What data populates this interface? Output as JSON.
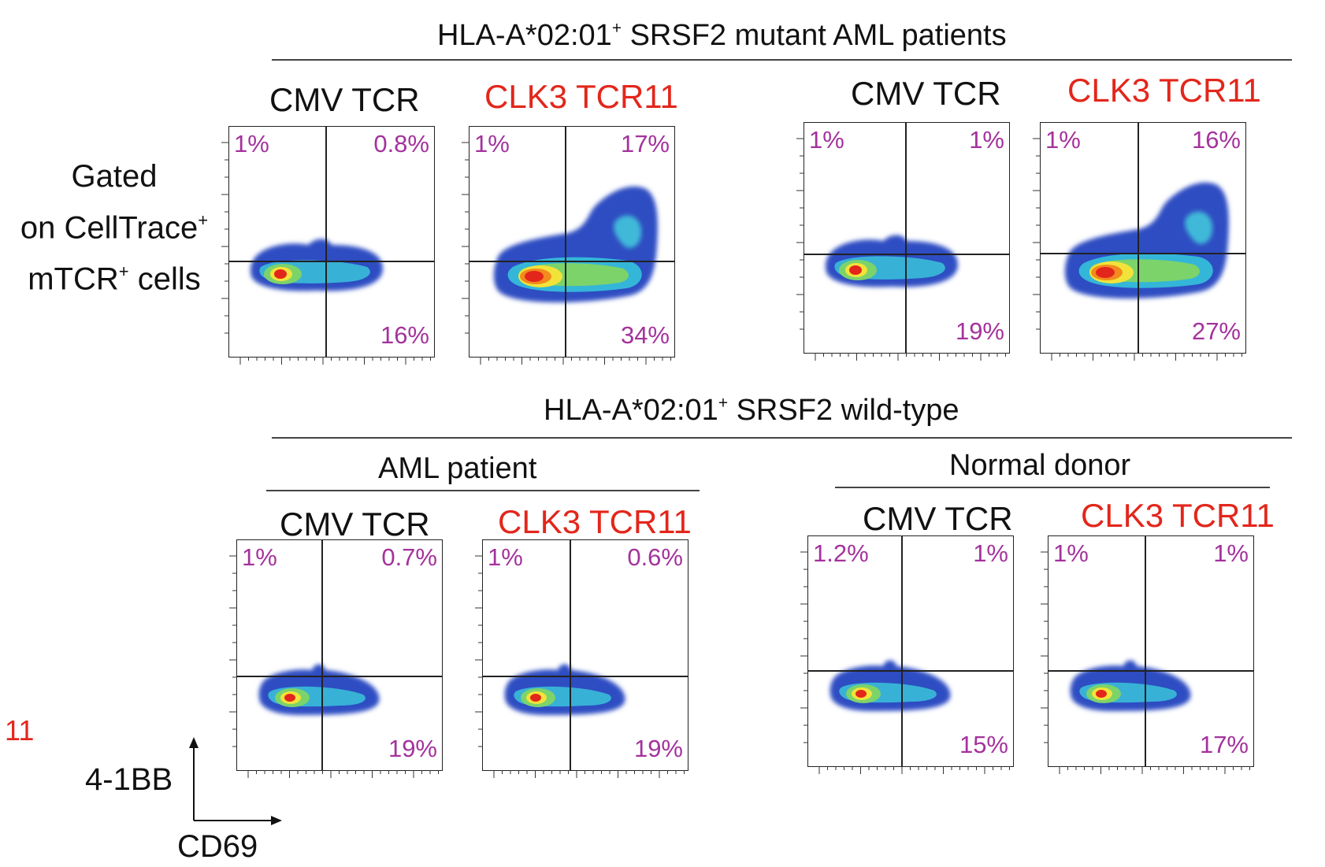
{
  "groups": {
    "mutant_title": "HLA-A*02:01",
    "mutant_title_rest": " SRSF2 mutant AML patients",
    "wt_title": "HLA-A*02:01",
    "wt_title_rest": " SRSF2 wild-type",
    "sup": "+",
    "aml_patient": "AML patient",
    "normal_donor": "Normal donor"
  },
  "gating": {
    "line1": "Gated",
    "line2": "on CellTrace",
    "line3": "mTCR",
    "line3_rest": " cells",
    "sup": "+"
  },
  "axes": {
    "y_label": "4-1BB",
    "x_label": "CD69"
  },
  "left_stray": "11",
  "colors": {
    "cmv": "#111111",
    "clk3": "#e3261b",
    "percent": "#a4329c"
  },
  "panels": [
    {
      "title": "CMV TCR",
      "ul": "1%",
      "ur": "0.8%",
      "lr": "16%"
    },
    {
      "title": "CLK3 TCR11",
      "ul": "1%",
      "ur": "17%",
      "lr": "34%"
    },
    {
      "title": "CMV TCR",
      "ul": "1%",
      "ur": "1%",
      "lr": "19%"
    },
    {
      "title": "CLK3 TCR11",
      "ul": "1%",
      "ur": "16%",
      "lr": "27%"
    },
    {
      "title": "CMV TCR",
      "ul": "1%",
      "ur": "0.7%",
      "lr": "19%"
    },
    {
      "title": "CLK3 TCR11",
      "ul": "1%",
      "ur": "0.6%",
      "lr": "19%"
    },
    {
      "title": "CMV TCR",
      "ul": "1.2%",
      "ur": "1%",
      "lr": "15%"
    },
    {
      "title": "CLK3 TCR11",
      "ul": "1%",
      "ur": "1%",
      "lr": "17%"
    }
  ]
}
